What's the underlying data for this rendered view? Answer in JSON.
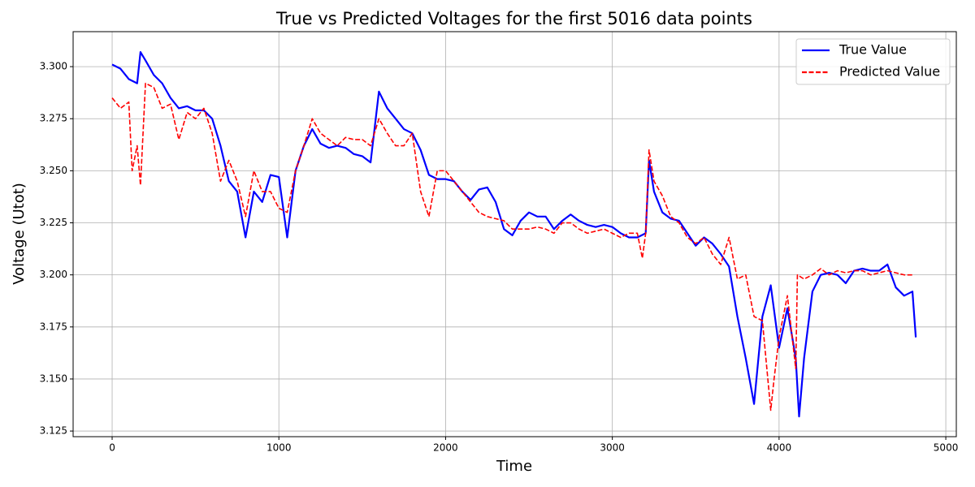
{
  "chart_data": {
    "type": "line",
    "title": "True vs Predicted Voltages for the first 5016 data points",
    "x_label": "Time",
    "y_label": "Voltage (Utot)",
    "xlim": [
      -234,
      5063
    ],
    "ylim": [
      3.1223,
      3.3168
    ],
    "xticks": [
      0,
      1000,
      2000,
      3000,
      4000,
      5000
    ],
    "yticks": [
      3.125,
      {
        "value": 3.15,
        "label": "3.150"
      },
      3.175,
      {
        "value": 3.2,
        "label": "3.200"
      },
      3.225,
      {
        "value": 3.25,
        "label": "3.250"
      },
      3.275,
      {
        "value": 3.3,
        "label": "3.300"
      }
    ],
    "grid": true,
    "legend": "upper right",
    "series": [
      {
        "name": "True Value",
        "color": "#0000ff",
        "style": "solid",
        "x": [
          0,
          50,
          100,
          150,
          170,
          200,
          250,
          300,
          350,
          400,
          450,
          500,
          550,
          600,
          650,
          700,
          750,
          800,
          850,
          900,
          950,
          1000,
          1050,
          1100,
          1150,
          1200,
          1250,
          1300,
          1350,
          1400,
          1450,
          1500,
          1550,
          1600,
          1650,
          1700,
          1750,
          1800,
          1850,
          1900,
          1950,
          2000,
          2050,
          2100,
          2150,
          2200,
          2250,
          2300,
          2350,
          2400,
          2450,
          2500,
          2550,
          2600,
          2650,
          2700,
          2750,
          2800,
          2850,
          2900,
          2950,
          3000,
          3050,
          3100,
          3150,
          3200,
          3220,
          3250,
          3300,
          3350,
          3400,
          3450,
          3500,
          3550,
          3600,
          3650,
          3700,
          3750,
          3800,
          3850,
          3900,
          3950,
          4000,
          4050,
          4100,
          4120,
          4150,
          4200,
          4250,
          4300,
          4350,
          4400,
          4450,
          4500,
          4550,
          4600,
          4650,
          4700,
          4750,
          4800,
          4820
        ],
        "values": [
          3.301,
          3.299,
          3.294,
          3.292,
          3.307,
          3.303,
          3.296,
          3.292,
          3.285,
          3.28,
          3.281,
          3.279,
          3.279,
          3.275,
          3.262,
          3.245,
          3.24,
          3.218,
          3.24,
          3.235,
          3.248,
          3.247,
          3.218,
          3.25,
          3.262,
          3.27,
          3.263,
          3.261,
          3.262,
          3.261,
          3.258,
          3.257,
          3.254,
          3.288,
          3.28,
          3.275,
          3.27,
          3.268,
          3.26,
          3.248,
          3.246,
          3.246,
          3.245,
          3.24,
          3.236,
          3.241,
          3.242,
          3.235,
          3.222,
          3.219,
          3.226,
          3.23,
          3.228,
          3.228,
          3.222,
          3.226,
          3.229,
          3.226,
          3.224,
          3.223,
          3.224,
          3.223,
          3.22,
          3.218,
          3.218,
          3.22,
          3.255,
          3.24,
          3.23,
          3.227,
          3.226,
          3.22,
          3.214,
          3.218,
          3.215,
          3.21,
          3.204,
          3.18,
          3.16,
          3.138,
          3.18,
          3.195,
          3.165,
          3.184,
          3.16,
          3.132,
          3.16,
          3.192,
          3.2,
          3.201,
          3.2,
          3.196,
          3.202,
          3.203,
          3.202,
          3.202,
          3.205,
          3.194,
          3.19,
          3.192,
          3.17
        ]
      },
      {
        "name": "Predicted Value",
        "color": "#ff0000",
        "style": "dashed",
        "x": [
          0,
          50,
          100,
          120,
          150,
          170,
          200,
          250,
          300,
          350,
          400,
          450,
          500,
          550,
          600,
          650,
          700,
          750,
          800,
          850,
          900,
          950,
          1000,
          1050,
          1100,
          1150,
          1200,
          1250,
          1300,
          1350,
          1400,
          1450,
          1500,
          1550,
          1600,
          1650,
          1700,
          1750,
          1800,
          1850,
          1900,
          1950,
          2000,
          2050,
          2100,
          2150,
          2200,
          2250,
          2300,
          2350,
          2400,
          2450,
          2500,
          2550,
          2600,
          2650,
          2700,
          2750,
          2800,
          2850,
          2900,
          2950,
          3000,
          3050,
          3100,
          3150,
          3180,
          3200,
          3220,
          3250,
          3300,
          3350,
          3400,
          3450,
          3500,
          3550,
          3600,
          3650,
          3700,
          3750,
          3800,
          3850,
          3900,
          3950,
          3970,
          4000,
          4050,
          4100,
          4110,
          4150,
          4200,
          4250,
          4300,
          4350,
          4400,
          4450,
          4500,
          4550,
          4600,
          4650,
          4700,
          4750,
          4800
        ],
        "values": [
          3.285,
          3.28,
          3.283,
          3.25,
          3.262,
          3.243,
          3.292,
          3.29,
          3.28,
          3.282,
          3.265,
          3.278,
          3.275,
          3.28,
          3.268,
          3.245,
          3.255,
          3.245,
          3.228,
          3.25,
          3.24,
          3.24,
          3.232,
          3.23,
          3.25,
          3.262,
          3.275,
          3.268,
          3.265,
          3.262,
          3.266,
          3.265,
          3.265,
          3.262,
          3.275,
          3.268,
          3.262,
          3.262,
          3.268,
          3.24,
          3.228,
          3.25,
          3.25,
          3.245,
          3.24,
          3.235,
          3.23,
          3.228,
          3.227,
          3.226,
          3.222,
          3.222,
          3.222,
          3.223,
          3.222,
          3.22,
          3.225,
          3.225,
          3.222,
          3.22,
          3.221,
          3.222,
          3.22,
          3.218,
          3.22,
          3.22,
          3.208,
          3.22,
          3.26,
          3.245,
          3.238,
          3.228,
          3.225,
          3.218,
          3.215,
          3.218,
          3.21,
          3.205,
          3.218,
          3.198,
          3.2,
          3.18,
          3.178,
          3.135,
          3.15,
          3.17,
          3.19,
          3.155,
          3.2,
          3.198,
          3.2,
          3.203,
          3.2,
          3.202,
          3.201,
          3.202,
          3.202,
          3.2,
          3.201,
          3.202,
          3.201,
          3.2,
          3.2
        ]
      }
    ]
  }
}
